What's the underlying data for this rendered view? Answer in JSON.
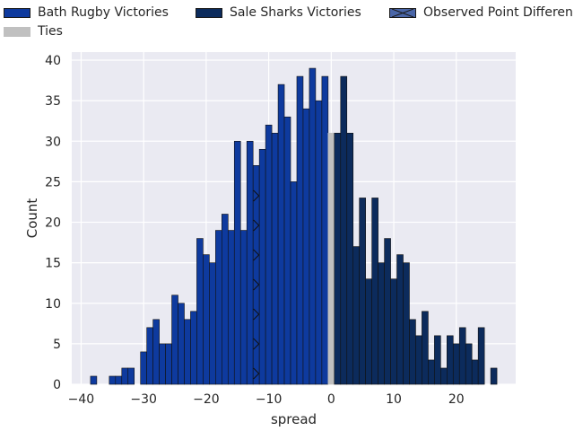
{
  "chart_data": {
    "type": "bar",
    "xlabel": "spread",
    "ylabel": "Count",
    "xlim": [
      -41.5,
      29.5
    ],
    "ylim": [
      0,
      41
    ],
    "xticks": [
      -40,
      -30,
      -20,
      -10,
      0,
      10,
      20
    ],
    "yticks": [
      0,
      5,
      10,
      15,
      20,
      25,
      30,
      35,
      40
    ],
    "legend": [
      {
        "label": "Bath Rugby Victories",
        "color": "#0e3a9e"
      },
      {
        "label": "Sale Sharks Victories",
        "color": "#0c2b5c"
      },
      {
        "label": "Observed Point Differen",
        "color": "#4a66a8"
      },
      {
        "label": "Ties",
        "color": "#c0c0c0"
      }
    ],
    "observed_point_difference": -12,
    "series": [
      {
        "name": "Bath Rugby Victories",
        "color": "#0e3a9e",
        "x": [
          -38,
          -35,
          -34,
          -33,
          -32,
          -30,
          -29,
          -28,
          -27,
          -26,
          -25,
          -24,
          -23,
          -22,
          -21,
          -20,
          -19,
          -18,
          -17,
          -16,
          -15,
          -14,
          -13,
          -12,
          -11,
          -10,
          -9,
          -8,
          -7,
          -6,
          -5,
          -4,
          -3,
          -2,
          -1
        ],
        "values": [
          1,
          1,
          1,
          2,
          2,
          4,
          7,
          8,
          5,
          5,
          11,
          10,
          8,
          9,
          18,
          16,
          15,
          19,
          21,
          19,
          30,
          19,
          30,
          27,
          29,
          32,
          31,
          37,
          33,
          25,
          38,
          34,
          39,
          35,
          38
        ]
      },
      {
        "name": "Ties",
        "color": "#c0c0c0",
        "x": [
          0
        ],
        "values": [
          31
        ]
      },
      {
        "name": "Sale Sharks Victories",
        "color": "#0c2b5c",
        "x": [
          1,
          2,
          3,
          4,
          5,
          6,
          7,
          8,
          9,
          10,
          11,
          12,
          13,
          14,
          15,
          16,
          17,
          18,
          19,
          20,
          21,
          22,
          23,
          24,
          26
        ],
        "values": [
          31,
          38,
          31,
          17,
          23,
          13,
          23,
          15,
          18,
          13,
          16,
          15,
          8,
          6,
          9,
          3,
          6,
          2,
          6,
          5,
          7,
          5,
          3,
          7,
          2
        ]
      }
    ]
  }
}
